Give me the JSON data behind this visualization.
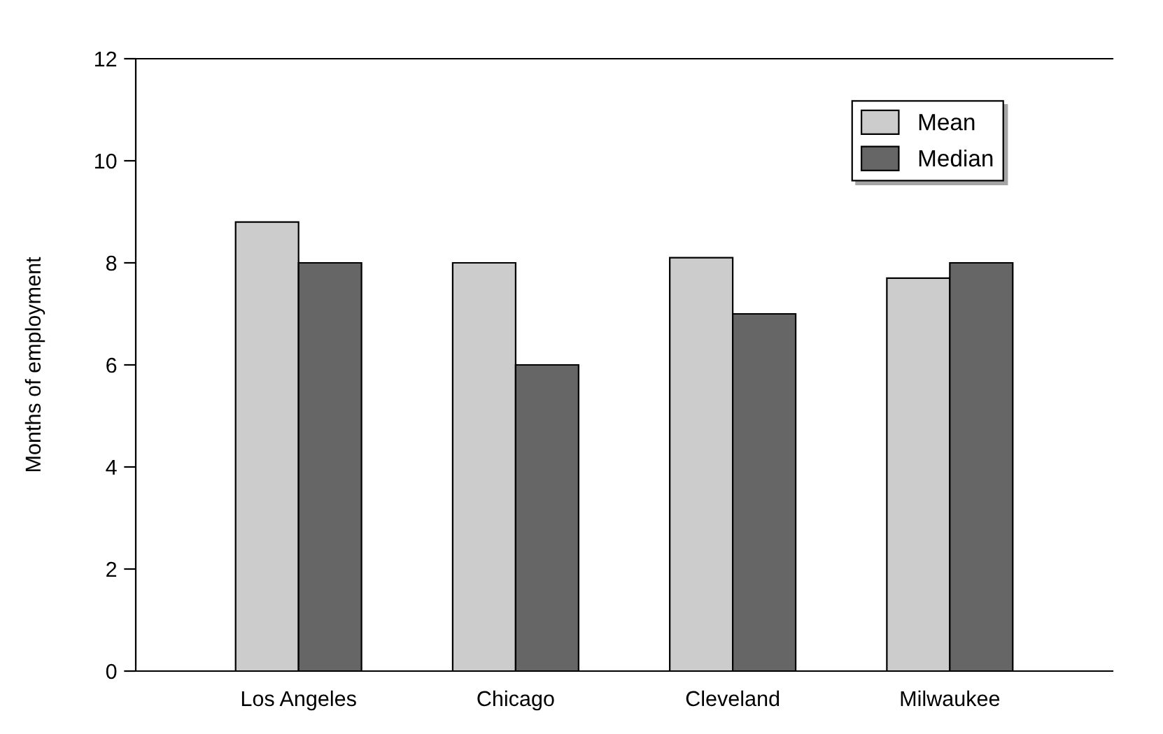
{
  "chart_data": {
    "type": "bar",
    "ylabel": "Months of employment",
    "categories": [
      "Los Angeles",
      "Chicago",
      "Cleveland",
      "Milwaukee"
    ],
    "series": [
      {
        "name": "Mean",
        "color": "#cccccc",
        "values": [
          8.8,
          8.0,
          8.1,
          7.7
        ]
      },
      {
        "name": "Median",
        "color": "#666666",
        "values": [
          8.0,
          6.0,
          7.0,
          8.0
        ]
      }
    ],
    "ylim": [
      0,
      12
    ],
    "yticks": [
      0,
      2,
      4,
      6,
      8,
      10,
      12
    ],
    "grid": false,
    "legend": "top right"
  }
}
